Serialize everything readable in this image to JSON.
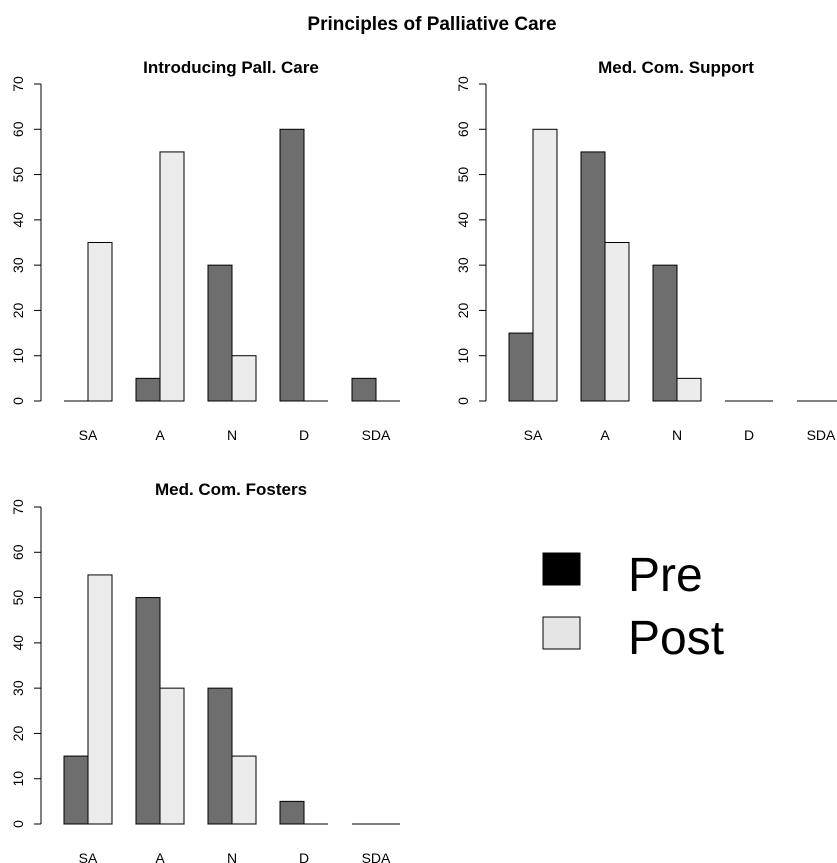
{
  "figure": {
    "title": "Principles of Palliative Care"
  },
  "legend": {
    "placement": "right-middle",
    "entries": [
      {
        "label": "Pre",
        "color": "#000000"
      },
      {
        "label": "Post",
        "color": "#e5e5e5"
      }
    ]
  },
  "chart_data": [
    {
      "type": "bar",
      "title": "Introducing Pall. Care",
      "categories": [
        "SA",
        "A",
        "N",
        "D",
        "SDA"
      ],
      "series": [
        {
          "name": "Pre",
          "color": "#6e6e6e",
          "values": [
            0,
            5,
            30,
            60,
            5
          ]
        },
        {
          "name": "Post",
          "color": "#ececec",
          "values": [
            35,
            55,
            10,
            0,
            0
          ]
        }
      ],
      "ylim": [
        0,
        70
      ],
      "yticks": [
        0,
        10,
        20,
        30,
        40,
        50,
        60,
        70
      ],
      "xlabel": "",
      "ylabel": "",
      "grid": false
    },
    {
      "type": "bar",
      "title": "Med. Com. Support",
      "categories": [
        "SA",
        "A",
        "N",
        "D",
        "SDA"
      ],
      "series": [
        {
          "name": "Pre",
          "color": "#6e6e6e",
          "values": [
            15,
            55,
            30,
            0,
            0
          ]
        },
        {
          "name": "Post",
          "color": "#ececec",
          "values": [
            60,
            35,
            5,
            0,
            0
          ]
        }
      ],
      "ylim": [
        0,
        70
      ],
      "yticks": [
        0,
        10,
        20,
        30,
        40,
        50,
        60,
        70
      ],
      "xlabel": "",
      "ylabel": "",
      "grid": false
    },
    {
      "type": "bar",
      "title": "Med. Com. Fosters",
      "categories": [
        "SA",
        "A",
        "N",
        "D",
        "SDA"
      ],
      "series": [
        {
          "name": "Pre",
          "color": "#6e6e6e",
          "values": [
            15,
            50,
            30,
            5,
            0
          ]
        },
        {
          "name": "Post",
          "color": "#ececec",
          "values": [
            55,
            30,
            15,
            0,
            0
          ]
        }
      ],
      "ylim": [
        0,
        70
      ],
      "yticks": [
        0,
        10,
        20,
        30,
        40,
        50,
        60,
        70
      ],
      "xlabel": "",
      "ylabel": "",
      "grid": false
    }
  ]
}
